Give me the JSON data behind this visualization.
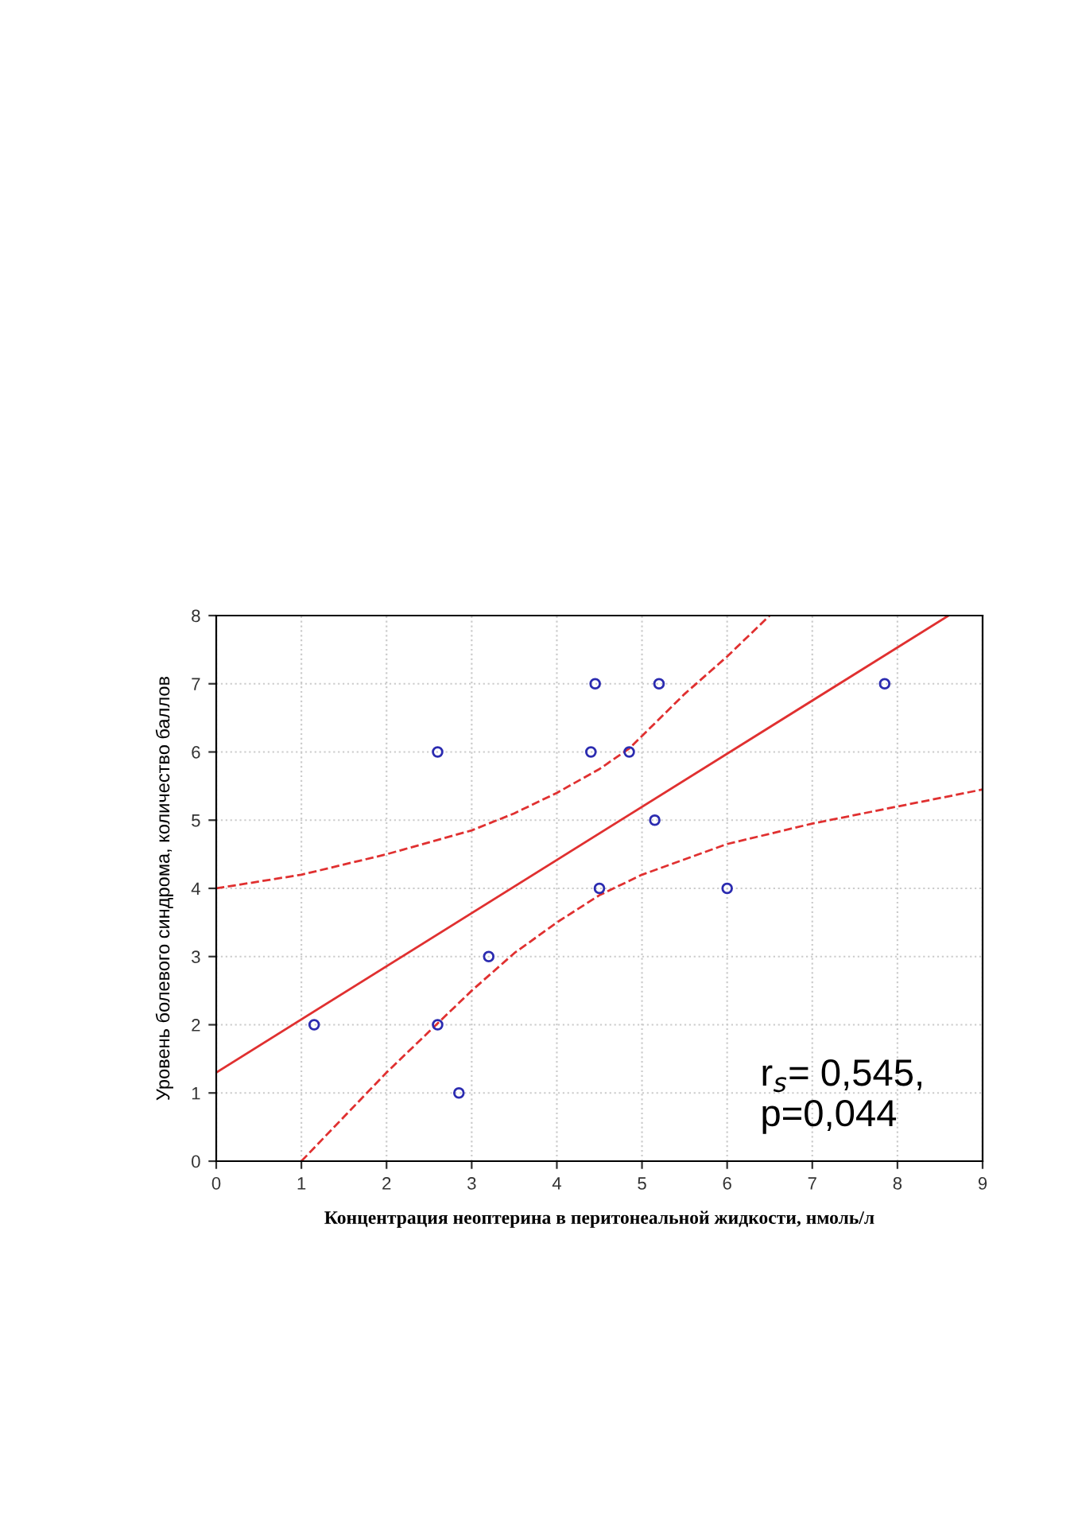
{
  "chart_data": {
    "type": "scatter",
    "xlabel": "Концентрация неоптерина в перитонеальной жидкости, нмоль/л",
    "ylabel": "Уровень болевого синдрома, количество баллов",
    "xlim": [
      0,
      9
    ],
    "ylim": [
      0,
      8
    ],
    "xticks": [
      0,
      1,
      2,
      3,
      4,
      5,
      6,
      7,
      8,
      9
    ],
    "yticks": [
      0,
      1,
      2,
      3,
      4,
      5,
      6,
      7,
      8
    ],
    "grid": true,
    "marker": "circle",
    "series": [
      {
        "color": "#2b2bb0",
        "x": [
          1.15,
          2.6,
          2.6,
          2.85,
          3.2,
          4.45,
          4.4,
          4.85,
          4.5,
          5.15,
          5.2,
          6.0,
          7.85
        ],
        "values": [
          2,
          6,
          2,
          1,
          3,
          7,
          6,
          6,
          4,
          5,
          7,
          4,
          7
        ]
      },
      {
        "type": "line",
        "color": "#e03030",
        "line_style": "solid",
        "marker": "none",
        "x": [
          0,
          8.6
        ],
        "values": [
          1.3,
          8
        ]
      },
      {
        "type": "line",
        "color": "#e03030",
        "line_style": "dashed",
        "marker": "none",
        "x": [
          0,
          1,
          2,
          3,
          3.5,
          4,
          4.5,
          4.85,
          5.5,
          6,
          6.5
        ],
        "values": [
          4,
          4.2,
          4.5,
          4.85,
          5.1,
          5.4,
          5.75,
          6.05,
          6.85,
          7.4,
          8
        ]
      },
      {
        "type": "line",
        "color": "#e03030",
        "line_style": "dashed",
        "marker": "none",
        "x": [
          1,
          1.5,
          2,
          2.5,
          3,
          3.5,
          4,
          4.5,
          5,
          6,
          7,
          8,
          9
        ],
        "values": [
          0,
          0.65,
          1.3,
          1.9,
          2.5,
          3.05,
          3.5,
          3.9,
          4.2,
          4.65,
          4.95,
          5.2,
          5.45
        ]
      }
    ],
    "annotations": [
      "r$_{s}$= 0,545,\np=0,044"
    ]
  }
}
